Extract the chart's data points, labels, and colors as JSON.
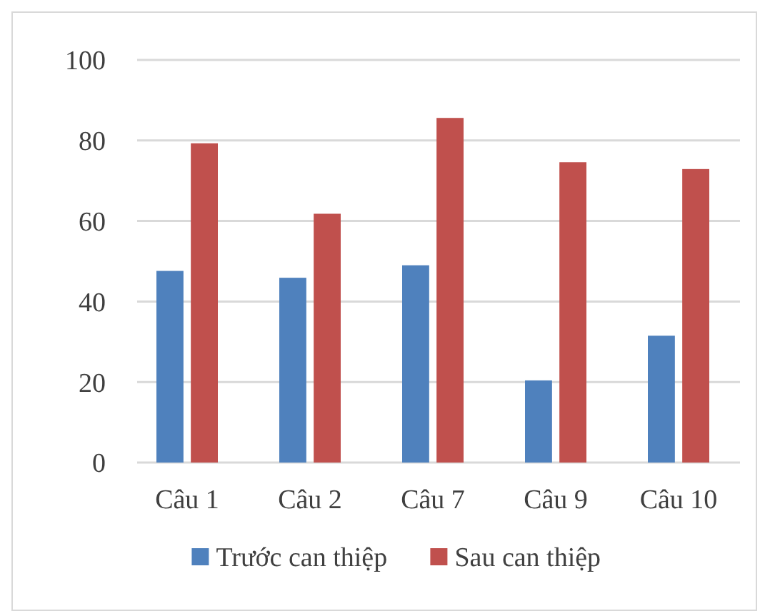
{
  "chart_data": {
    "type": "bar",
    "categories": [
      "Câu 1",
      "Câu 2",
      "Câu 7",
      "Câu 9",
      "Câu 10"
    ],
    "series": [
      {
        "name": "Trước can thiệp",
        "color": "#4f81bd",
        "values": [
          47.6,
          45.9,
          49.0,
          20.4,
          31.5
        ]
      },
      {
        "name": "Sau can thiệp",
        "color": "#c0504d",
        "values": [
          79.3,
          61.8,
          85.6,
          74.6,
          72.9
        ]
      }
    ],
    "ylim": [
      0,
      100
    ],
    "yticks": [
      0,
      20,
      40,
      60,
      80,
      100
    ],
    "grid": "y",
    "legend": "bottom"
  }
}
